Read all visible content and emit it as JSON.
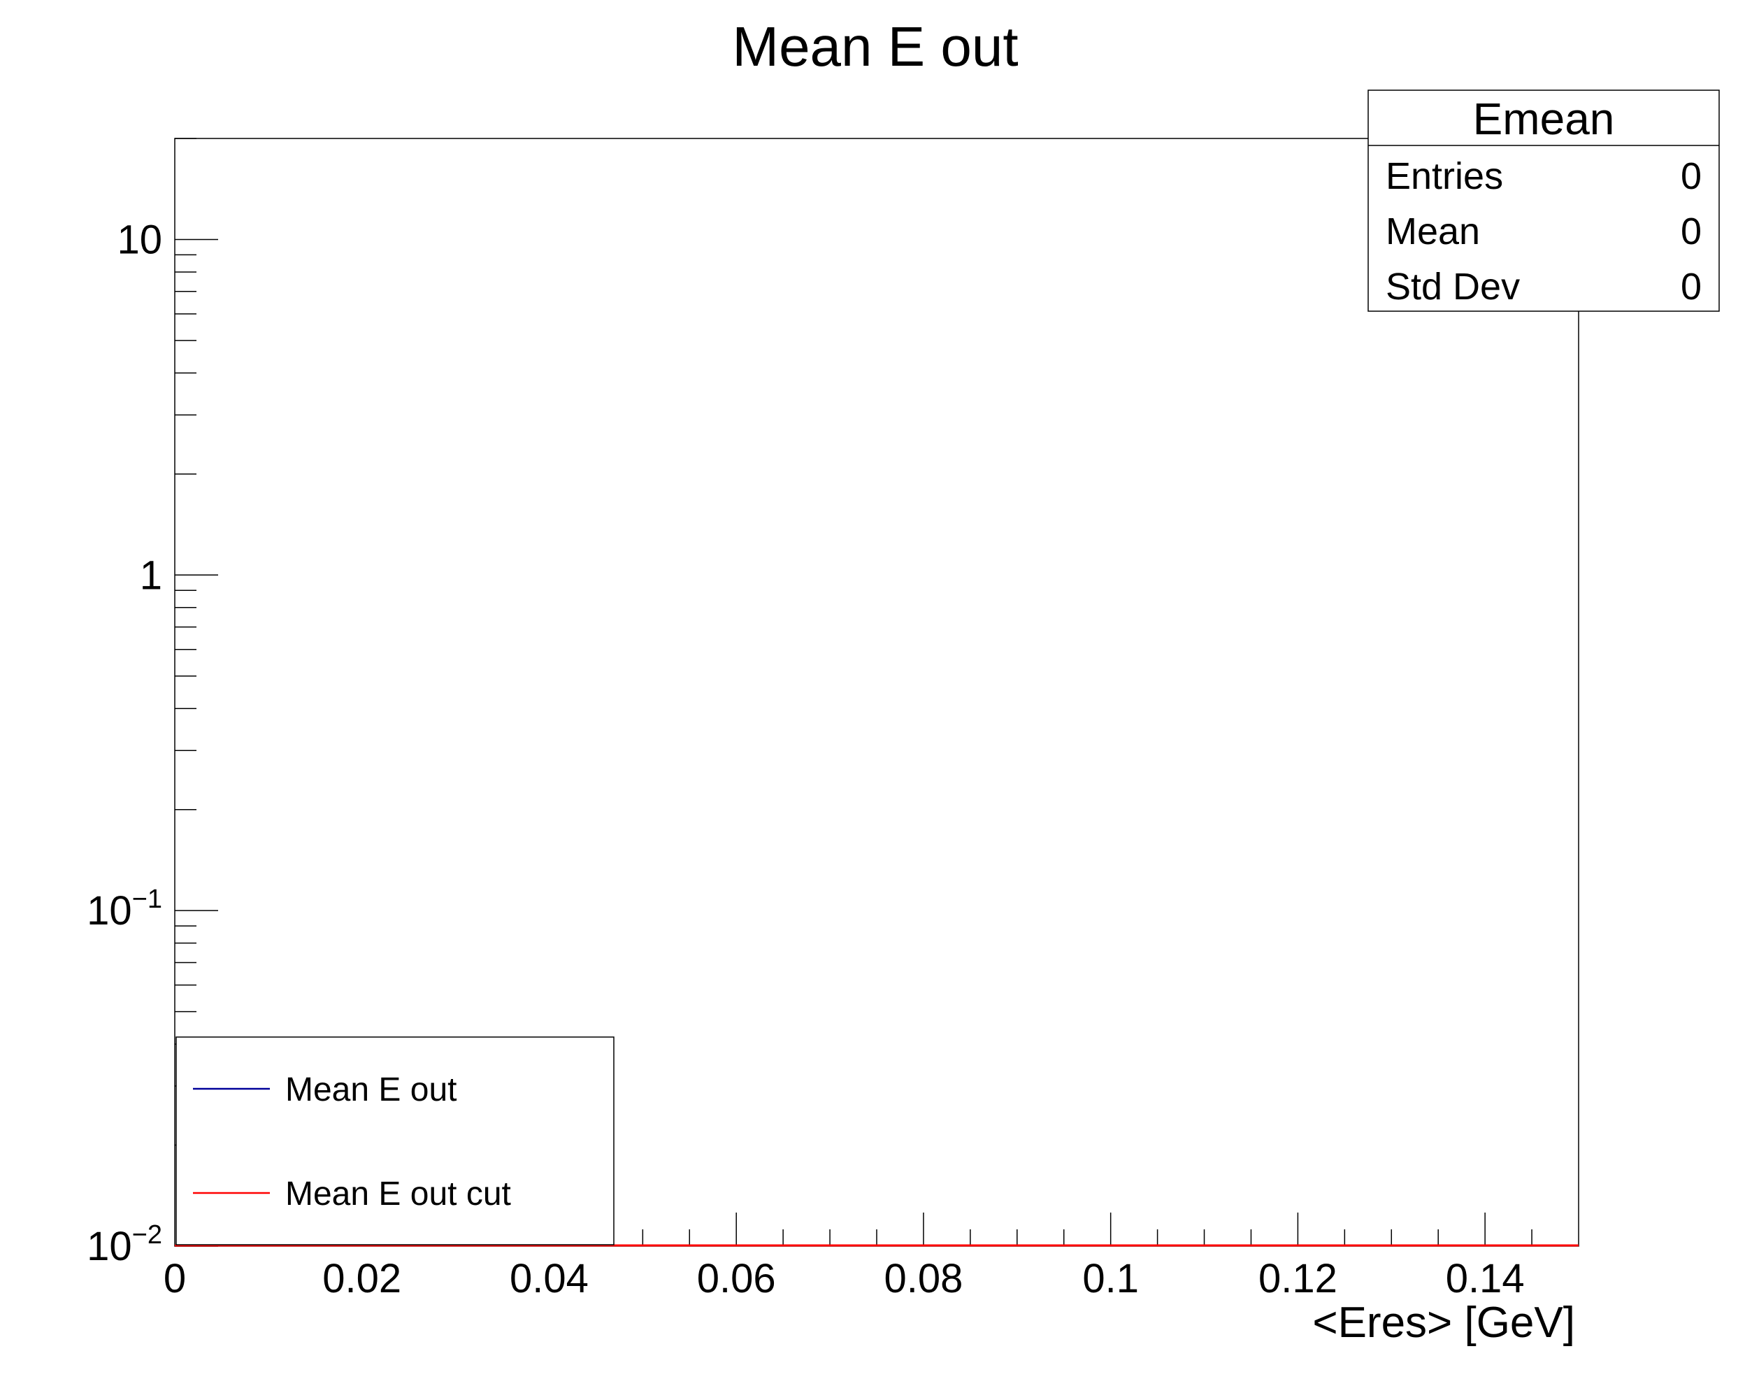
{
  "chart_data": {
    "type": "line",
    "title": "Mean E out",
    "xlabel": "<Eres> [GeV]",
    "ylabel": "",
    "xlim": [
      0,
      0.15
    ],
    "ylim": [
      0.01,
      20
    ],
    "y_scale": "log",
    "x_ticks": [
      {
        "value": 0,
        "label": "0"
      },
      {
        "value": 0.02,
        "label": "0.02"
      },
      {
        "value": 0.04,
        "label": "0.04"
      },
      {
        "value": 0.06,
        "label": "0.06"
      },
      {
        "value": 0.08,
        "label": "0.08"
      },
      {
        "value": 0.1,
        "label": "0.1"
      },
      {
        "value": 0.12,
        "label": "0.12"
      },
      {
        "value": 0.14,
        "label": "0.14"
      }
    ],
    "x_minor_step": 0.005,
    "y_ticks": [
      {
        "value": 0.01,
        "base": "10",
        "exp": "−2"
      },
      {
        "value": 0.1,
        "base": "10",
        "exp": "−1"
      },
      {
        "value": 1,
        "base": "1",
        "exp": ""
      },
      {
        "value": 10,
        "base": "10",
        "exp": ""
      }
    ],
    "series": [
      {
        "name": "Mean E out",
        "color": "#000099",
        "x": [
          0,
          0.15
        ],
        "y": [
          0.01,
          0.01
        ]
      },
      {
        "name": "Mean E out cut",
        "color": "#ff0000",
        "x": [
          0,
          0.15
        ],
        "y": [
          0.01,
          0.01
        ]
      }
    ],
    "grid": false,
    "legend": {
      "position": "bottom-left",
      "entries": [
        {
          "label": "Mean E out",
          "color": "#000099"
        },
        {
          "label": "Mean E out cut",
          "color": "#ff0000"
        }
      ]
    },
    "stats_box": {
      "position": "top-right",
      "title": "Emean",
      "rows": [
        {
          "label": "Entries",
          "value": "0"
        },
        {
          "label": "Mean",
          "value": "0"
        },
        {
          "label": "Std Dev",
          "value": "0"
        }
      ]
    }
  }
}
